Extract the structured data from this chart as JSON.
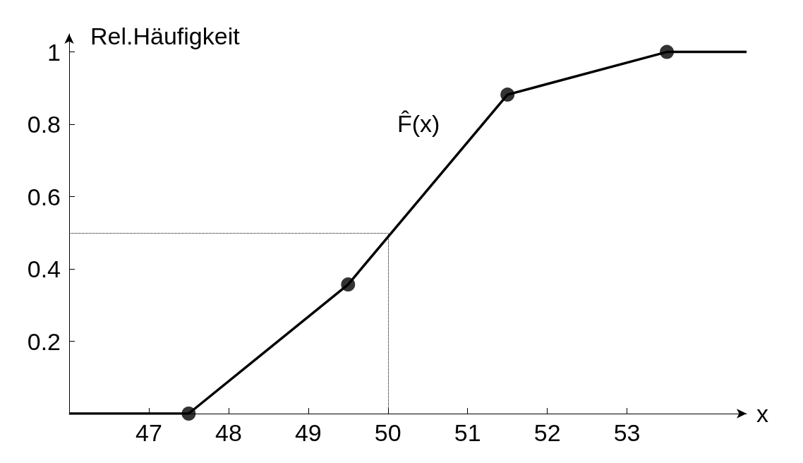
{
  "chart_data": {
    "type": "line",
    "ylabel": "Rel.Häufigkeit",
    "xlabel": "x",
    "xlim": [
      46,
      54.5
    ],
    "xticks": [
      47,
      48,
      49,
      50,
      51,
      52,
      53
    ],
    "ylim": [
      0,
      1.05
    ],
    "yticks": [
      0.2,
      0.4,
      0.6,
      0.8,
      1
    ],
    "series": [
      {
        "color": "#000000",
        "marker": "none",
        "x": [
          46,
          47.5,
          49.5,
          51.5,
          53.5,
          54.5
        ],
        "values": [
          0,
          0,
          0.357,
          0.882,
          1,
          1
        ]
      },
      {
        "type": "scatter",
        "color": "#000000",
        "marker": "circle",
        "x": [
          47.5,
          49.5,
          51.5,
          53.5
        ],
        "values": [
          0,
          0.357,
          0.882,
          1
        ]
      }
    ],
    "ref_lines": [
      {
        "axis": "x",
        "value": 50,
        "line_style": "dotted",
        "color": "#000000"
      },
      {
        "axis": "y",
        "value": 0.5,
        "line_style": "dotted",
        "color": "#000000"
      }
    ],
    "annotations": [
      "F̂(x)"
    ],
    "grid": false
  }
}
